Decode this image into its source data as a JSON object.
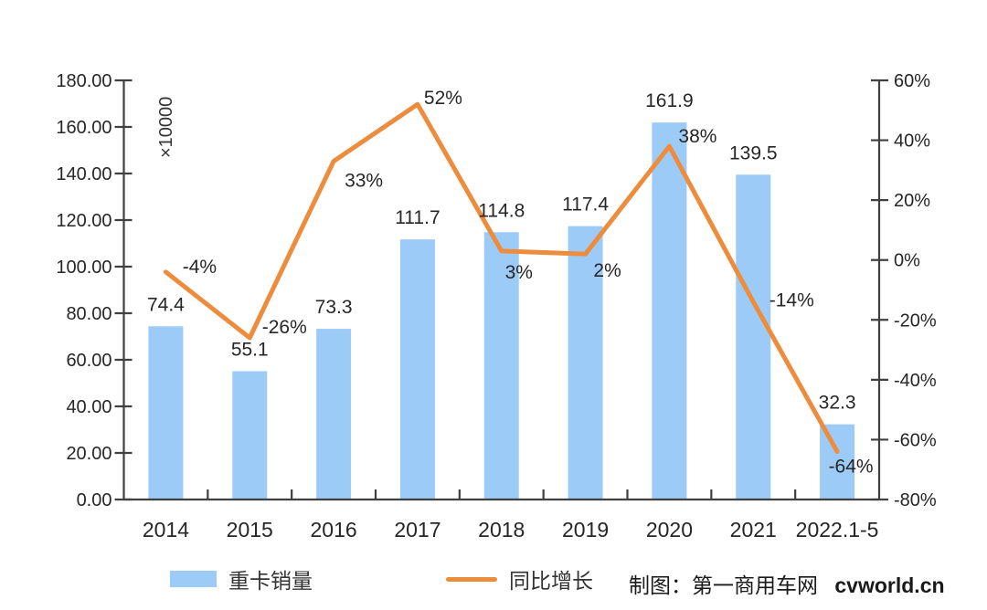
{
  "chart_data": {
    "type": "combo-bar-line",
    "title": "",
    "categories": [
      "2014",
      "2015",
      "2016",
      "2017",
      "2018",
      "2019",
      "2020",
      "2021",
      "2022.1-5"
    ],
    "series": [
      {
        "name": "重卡销量",
        "type": "bar",
        "axis": "left",
        "color": "#9DCBF7",
        "values": [
          74.4,
          55.1,
          73.3,
          111.7,
          114.8,
          117.4,
          161.9,
          139.5,
          32.3
        ],
        "labels": [
          "74.4",
          "55.1",
          "73.3",
          "111.7",
          "114.8",
          "117.4",
          "161.9",
          "139.5",
          "32.3"
        ]
      },
      {
        "name": "同比增长",
        "type": "line",
        "axis": "right",
        "color": "#ED8C3D",
        "values": [
          -4,
          -26,
          33,
          52,
          3,
          2,
          38,
          -14,
          -64
        ],
        "labels": [
          "-4%",
          "-26%",
          "33%",
          "52%",
          "3%",
          "2%",
          "38%",
          "-14%",
          "-64%"
        ],
        "label_offsets": [
          [
            37,
            1
          ],
          [
            38,
            -5
          ],
          [
            33,
            28
          ],
          [
            28,
            0
          ],
          [
            19,
            30
          ],
          [
            24,
            25
          ],
          [
            31,
            -4
          ],
          [
            42,
            5
          ],
          [
            15,
            23
          ]
        ]
      }
    ],
    "left_axis": {
      "min": 0,
      "max": 180,
      "step": 20,
      "unit_label": "×10000",
      "tick_labels": [
        "0.00",
        "20.00",
        "40.00",
        "60.00",
        "80.00",
        "100.00",
        "120.00",
        "140.00",
        "160.00",
        "180.00"
      ]
    },
    "right_axis": {
      "min": -80,
      "max": 60,
      "step": 20,
      "tick_labels": [
        "-80%",
        "-60%",
        "-40%",
        "-20%",
        "0%",
        "20%",
        "40%",
        "60%"
      ]
    },
    "grid": false,
    "legend_position": "bottom",
    "legend": [
      {
        "label": "重卡销量",
        "marker": "bar"
      },
      {
        "label": "同比增长",
        "marker": "line"
      }
    ],
    "credit": {
      "prefix": "制图：第一商用车网",
      "site": "cvworld.cn"
    }
  }
}
